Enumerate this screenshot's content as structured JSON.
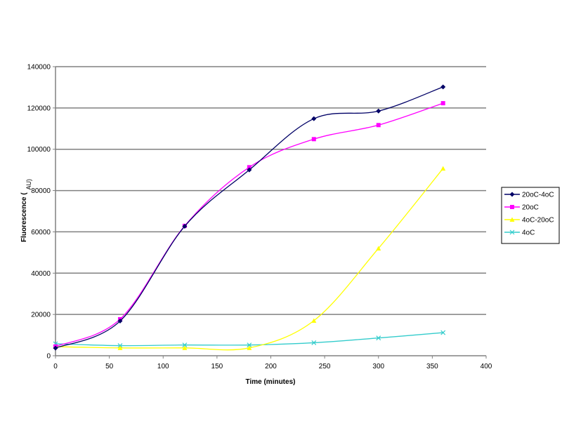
{
  "chart_data": {
    "type": "line",
    "title": "",
    "xlabel": "Time (minutes)",
    "ylabel": "Fluorescence (",
    "ylabel_unit": "AU)",
    "xlim": [
      0,
      400
    ],
    "ylim": [
      0,
      140000
    ],
    "x_ticks": [
      0,
      50,
      100,
      150,
      200,
      250,
      300,
      350,
      400
    ],
    "y_ticks": [
      0,
      20000,
      40000,
      60000,
      80000,
      100000,
      120000,
      140000
    ],
    "grid": "horizontal major gridlines",
    "legend_position": "right",
    "smoothed": true,
    "x": [
      0,
      60,
      120,
      180,
      240,
      300,
      360
    ],
    "series": [
      {
        "name": "20oC-4oC",
        "color": "#000066",
        "marker": "diamond",
        "values": [
          3700,
          16800,
          62700,
          90000,
          114800,
          118500,
          130200
        ]
      },
      {
        "name": "20oC",
        "color": "#ff00ff",
        "marker": "square",
        "values": [
          4500,
          17700,
          62900,
          91300,
          104900,
          111700,
          122300
        ]
      },
      {
        "name": "4oC-20oC",
        "color": "#ffff00",
        "marker": "triangle",
        "values": [
          4400,
          3800,
          3800,
          3800,
          17000,
          52000,
          90700
        ]
      },
      {
        "name": "4oC",
        "color": "#33cccc",
        "marker": "x",
        "values": [
          5800,
          4900,
          5200,
          5200,
          6300,
          8600,
          11200
        ]
      }
    ]
  }
}
